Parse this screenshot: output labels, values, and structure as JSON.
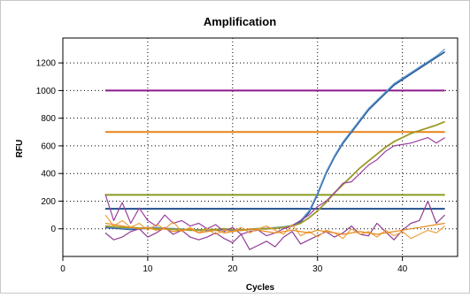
{
  "chart_data": {
    "type": "line",
    "title": "Amplification",
    "xlabel": "Cycles",
    "ylabel": "RFU",
    "xlim": [
      0,
      46.5
    ],
    "ylim": [
      -200,
      1380
    ],
    "x_ticks": [
      0,
      10,
      20,
      30,
      40
    ],
    "y_ticks": [
      0,
      200,
      400,
      600,
      800,
      1000,
      1200
    ],
    "grid": "dotted",
    "background_color": "#ffffff",
    "threshold_lines": [
      {
        "y": 1000,
        "x_range": [
          5,
          45
        ],
        "color": "#8b1a8b"
      },
      {
        "y": 700,
        "x_range": [
          5,
          45
        ],
        "color": "#e8821a"
      },
      {
        "y": 245,
        "x_range": [
          5,
          45
        ],
        "color": "#8a9a1e"
      },
      {
        "y": 145,
        "x_range": [
          5,
          45
        ],
        "color": "#1f4e8c"
      }
    ],
    "series": [
      {
        "color": "#2e5f9e",
        "x": [
          5,
          6,
          7,
          8,
          9,
          10,
          11,
          12,
          13,
          14,
          15,
          16,
          17,
          18,
          19,
          20,
          21,
          22,
          23,
          24,
          25,
          26,
          27,
          28,
          29,
          30,
          31,
          32,
          33,
          34,
          35,
          36,
          37,
          38,
          39,
          40,
          41,
          42,
          43,
          44,
          45
        ],
        "y": [
          10,
          5,
          0,
          -5,
          0,
          5,
          5,
          0,
          0,
          -5,
          -5,
          -10,
          -10,
          -10,
          -5,
          -10,
          -10,
          -5,
          0,
          0,
          5,
          10,
          20,
          50,
          120,
          250,
          400,
          520,
          620,
          700,
          780,
          860,
          920,
          980,
          1040,
          1080,
          1120,
          1160,
          1200,
          1240,
          1280
        ]
      },
      {
        "color": "#5f9bd0",
        "x": [
          5,
          6,
          7,
          8,
          9,
          10,
          11,
          12,
          13,
          14,
          15,
          16,
          17,
          18,
          19,
          20,
          21,
          22,
          23,
          24,
          25,
          26,
          27,
          28,
          29,
          30,
          31,
          32,
          33,
          34,
          35,
          36,
          37,
          38,
          39,
          40,
          41,
          42,
          43,
          44,
          45
        ],
        "y": [
          15,
          10,
          5,
          0,
          5,
          10,
          10,
          5,
          0,
          0,
          -5,
          -5,
          -10,
          -5,
          -5,
          -10,
          -5,
          -5,
          0,
          5,
          10,
          15,
          25,
          60,
          130,
          260,
          410,
          530,
          630,
          710,
          790,
          870,
          930,
          990,
          1050,
          1090,
          1130,
          1170,
          1210,
          1250,
          1300
        ]
      },
      {
        "color": "#9a9a28",
        "x": [
          5,
          6,
          7,
          8,
          9,
          10,
          11,
          12,
          13,
          14,
          15,
          16,
          17,
          18,
          19,
          20,
          21,
          22,
          23,
          24,
          25,
          26,
          27,
          28,
          29,
          30,
          31,
          32,
          33,
          34,
          35,
          36,
          37,
          38,
          39,
          40,
          41,
          42,
          43,
          44,
          45
        ],
        "y": [
          20,
          15,
          10,
          10,
          5,
          5,
          0,
          0,
          -5,
          -5,
          -10,
          -10,
          -5,
          -5,
          0,
          -5,
          -10,
          -5,
          0,
          0,
          5,
          10,
          20,
          40,
          80,
          130,
          190,
          260,
          320,
          380,
          440,
          490,
          540,
          590,
          630,
          660,
          690,
          710,
          730,
          750,
          775
        ]
      },
      {
        "color": "#9b40a0",
        "x": [
          5,
          6,
          7,
          8,
          9,
          10,
          11,
          12,
          13,
          14,
          15,
          16,
          17,
          18,
          19,
          20,
          21,
          22,
          23,
          24,
          25,
          26,
          27,
          28,
          29,
          30,
          31,
          32,
          33,
          34,
          35,
          36,
          37,
          38,
          39,
          40,
          41,
          42,
          43,
          44,
          45
        ],
        "y": [
          250,
          60,
          190,
          40,
          150,
          60,
          20,
          100,
          40,
          60,
          20,
          40,
          0,
          30,
          -20,
          10,
          -40,
          -20,
          -10,
          -50,
          -30,
          0,
          20,
          60,
          100,
          160,
          200,
          260,
          330,
          340,
          400,
          460,
          500,
          560,
          600,
          610,
          620,
          640,
          660,
          620,
          660
        ]
      },
      {
        "color": "#8e3e94",
        "x": [
          5,
          6,
          7,
          8,
          9,
          10,
          11,
          12,
          13,
          14,
          15,
          16,
          17,
          18,
          19,
          20,
          21,
          22,
          23,
          24,
          25,
          26,
          27,
          28,
          29,
          30,
          31,
          32,
          33,
          34,
          35,
          36,
          37,
          38,
          39,
          40,
          41,
          42,
          43,
          44,
          45
        ],
        "y": [
          -30,
          -80,
          -60,
          -20,
          0,
          -60,
          -30,
          10,
          -40,
          -10,
          -60,
          -80,
          -60,
          -30,
          -70,
          -100,
          -40,
          -150,
          -120,
          -90,
          -130,
          -60,
          -20,
          -110,
          -80,
          -50,
          -20,
          -60,
          -30,
          20,
          -40,
          -50,
          40,
          -20,
          -80,
          -10,
          40,
          60,
          200,
          40,
          100
        ]
      },
      {
        "color": "#f0a040",
        "x": [
          5,
          6,
          7,
          8,
          9,
          10,
          11,
          12,
          13,
          14,
          15,
          16,
          17,
          18,
          19,
          20,
          21,
          22,
          23,
          24,
          25,
          26,
          27,
          28,
          29,
          30,
          31,
          32,
          33,
          34,
          35,
          36,
          37,
          38,
          39,
          40,
          41,
          42,
          43,
          44,
          45
        ],
        "y": [
          100,
          20,
          60,
          10,
          40,
          -10,
          30,
          0,
          50,
          -20,
          10,
          -30,
          0,
          -40,
          -10,
          -20,
          10,
          -30,
          0,
          20,
          -10,
          -40,
          30,
          -50,
          -20,
          -60,
          -10,
          -30,
          -70,
          0,
          -40,
          -20,
          -60,
          -10,
          -50,
          -20,
          -70,
          -40,
          -10,
          -30,
          20
        ]
      },
      {
        "color": "#e88a1a",
        "x": [
          5,
          6,
          7,
          8,
          9,
          10,
          11,
          12,
          13,
          14,
          15,
          16,
          17,
          18,
          19,
          20,
          21,
          22,
          23,
          24,
          25,
          26,
          27,
          28,
          29,
          30,
          31,
          32,
          33,
          34,
          35,
          36,
          37,
          38,
          39,
          40,
          41,
          42,
          43,
          44,
          45
        ],
        "y": [
          40,
          30,
          20,
          10,
          0,
          10,
          -10,
          0,
          -20,
          -10,
          0,
          -30,
          -20,
          -10,
          -30,
          -20,
          -10,
          0,
          -10,
          -20,
          -30,
          -20,
          -10,
          -20,
          -30,
          -10,
          -20,
          -30,
          -40,
          -30,
          -20,
          -30,
          -40,
          -30,
          -20,
          -10,
          0,
          10,
          20,
          30,
          40
        ]
      }
    ]
  }
}
